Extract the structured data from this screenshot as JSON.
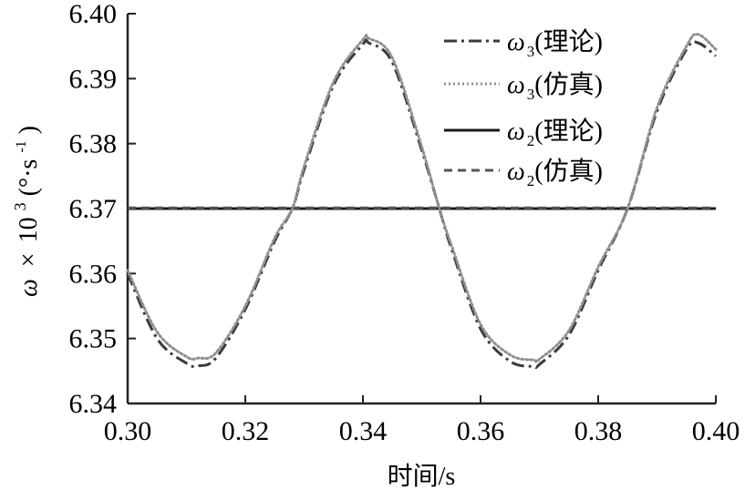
{
  "chart_data": {
    "type": "line",
    "xlabel": "时间/s",
    "ylabel": {
      "symbol": "ω",
      "times": "×",
      "base": "10",
      "exponent": "3",
      "unit_open": "(°·s",
      "unit_exponent": "-1",
      "unit_close": ")"
    },
    "xlim": [
      0.3,
      0.4
    ],
    "ylim": [
      6.34,
      6.4
    ],
    "x_ticks": [
      0.3,
      0.32,
      0.34,
      0.36,
      0.38,
      0.4
    ],
    "x_tick_labels": [
      "0.30",
      "0.32",
      "0.34",
      "0.36",
      "0.38",
      "0.40"
    ],
    "y_ticks": [
      6.34,
      6.35,
      6.36,
      6.37,
      6.38,
      6.39,
      6.4
    ],
    "y_tick_labels": [
      "6.34",
      "6.35",
      "6.36",
      "6.37",
      "6.38",
      "6.39",
      "6.40"
    ],
    "grid": false,
    "legend_position": "top-right",
    "series": [
      {
        "name": "ω3(理论)",
        "legend_symbol": "ω",
        "legend_sub": "3",
        "legend_suffix": "(理论)",
        "style": "dashdot",
        "color": "#3a3a3a",
        "x": [
          0.3,
          0.305,
          0.31,
          0.312,
          0.315,
          0.32,
          0.325,
          0.328,
          0.33,
          0.335,
          0.34,
          0.341,
          0.345,
          0.35,
          0.353,
          0.355,
          0.36,
          0.365,
          0.369,
          0.37,
          0.375,
          0.38,
          0.385,
          0.39,
          0.395,
          0.397,
          0.4
        ],
        "y": [
          6.36,
          6.35,
          6.3462,
          6.3458,
          6.347,
          6.3545,
          6.365,
          6.37,
          6.376,
          6.389,
          6.3953,
          6.3955,
          6.3925,
          6.379,
          6.37,
          6.364,
          6.3515,
          6.3465,
          6.3457,
          6.346,
          6.3505,
          6.3605,
          6.37,
          6.385,
          6.3945,
          6.3955,
          6.3935
        ]
      },
      {
        "name": "ω3(仿真)",
        "legend_symbol": "ω",
        "legend_sub": "3",
        "legend_suffix": "(仿真)",
        "style": "dotted",
        "color": "#909090",
        "x": [
          0.3,
          0.305,
          0.31,
          0.312,
          0.315,
          0.32,
          0.325,
          0.328,
          0.33,
          0.335,
          0.34,
          0.341,
          0.345,
          0.35,
          0.353,
          0.355,
          0.36,
          0.365,
          0.369,
          0.37,
          0.375,
          0.38,
          0.385,
          0.39,
          0.395,
          0.397,
          0.4
        ],
        "y": [
          6.3605,
          6.351,
          6.3472,
          6.347,
          6.3478,
          6.355,
          6.3655,
          6.37,
          6.3765,
          6.3895,
          6.396,
          6.3962,
          6.3932,
          6.3795,
          6.37,
          6.3645,
          6.3522,
          6.3475,
          6.3467,
          6.3468,
          6.3512,
          6.361,
          6.37,
          6.3855,
          6.395,
          6.3968,
          6.3945
        ]
      },
      {
        "name": "ω2(理论)",
        "legend_symbol": "ω",
        "legend_sub": "2",
        "legend_suffix": "(理论)",
        "style": "solid",
        "color": "#1a1a1a",
        "x": [
          0.3,
          0.4
        ],
        "y": [
          6.37,
          6.37
        ]
      },
      {
        "name": "ω2(仿真)",
        "legend_symbol": "ω",
        "legend_sub": "2",
        "legend_suffix": "(仿真)",
        "style": "dashed",
        "color": "#555555",
        "x": [
          0.3,
          0.4
        ],
        "y": [
          6.3701,
          6.3701
        ]
      }
    ]
  }
}
